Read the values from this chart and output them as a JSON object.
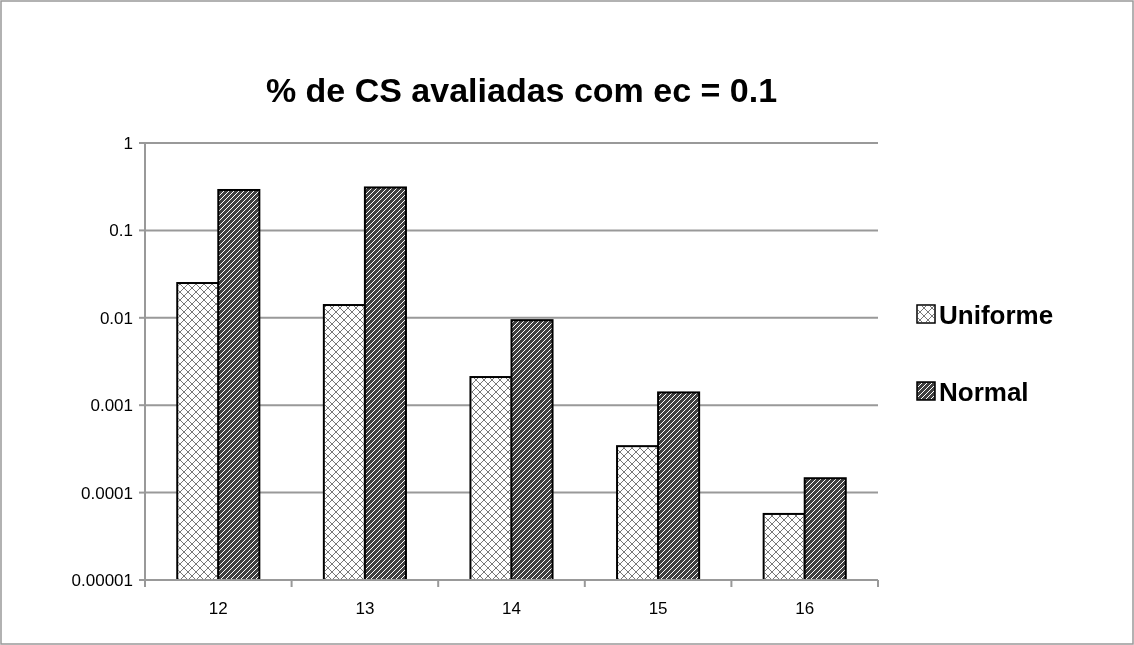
{
  "chart_data": {
    "type": "bar",
    "title": "% de CS avaliadas com ec = 0.1",
    "categories": [
      "12",
      "13",
      "14",
      "15",
      "16"
    ],
    "series": [
      {
        "name": "Uniforme",
        "color": "#ffffff",
        "values": [
          0.025,
          0.014,
          0.0021,
          0.00034,
          5.7e-05
        ]
      },
      {
        "name": "Normal",
        "color": "#404040",
        "values": [
          0.29,
          0.31,
          0.0094,
          0.0014,
          0.000146
        ]
      }
    ],
    "log": "y",
    "ylim": [
      1e-05,
      1
    ],
    "yticks": [
      {
        "value": 1e-05,
        "label": "0.00001"
      },
      {
        "value": 0.0001,
        "label": "0.0001"
      },
      {
        "value": 0.001,
        "label": "0.001"
      },
      {
        "value": 0.01,
        "label": "0.01"
      },
      {
        "value": 0.1,
        "label": "0.1"
      },
      {
        "value": 1,
        "label": "1"
      }
    ],
    "grid": "y",
    "legend": "right"
  }
}
